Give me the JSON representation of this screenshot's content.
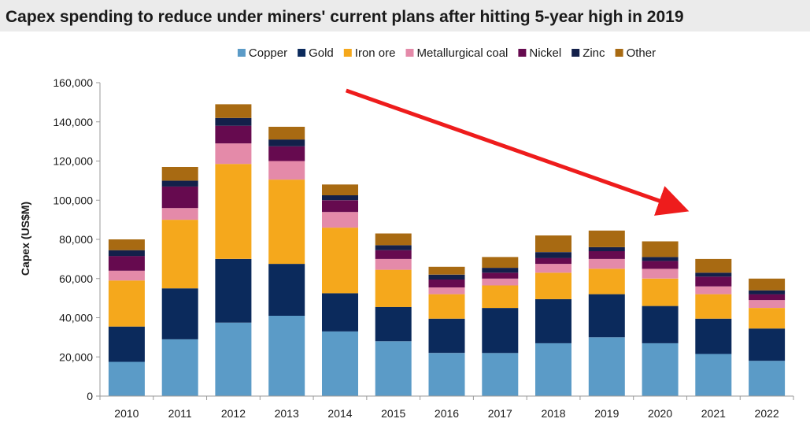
{
  "chart_data": {
    "type": "bar",
    "stacked": true,
    "title": "Capex spending to reduce under miners' current plans after hitting 5-year high in 2019",
    "xlabel": "",
    "ylabel": "Capex (US$M)",
    "ylim": [
      0,
      160000
    ],
    "yticks": [
      0,
      20000,
      40000,
      60000,
      80000,
      100000,
      120000,
      140000,
      160000
    ],
    "ytick_labels": [
      "0",
      "20,000",
      "40,000",
      "60,000",
      "80,000",
      "100,000",
      "120,000",
      "140,000",
      "160,000"
    ],
    "grid": false,
    "legend_position": "top",
    "categories": [
      "2010",
      "2011",
      "2012",
      "2013",
      "2014",
      "2015",
      "2016",
      "2017",
      "2018",
      "2019",
      "2020",
      "2021",
      "2022"
    ],
    "series": [
      {
        "name": "Copper",
        "color": "#5b9bc7",
        "values": [
          17500,
          29000,
          37500,
          41000,
          33000,
          28000,
          22000,
          22000,
          27000,
          30000,
          27000,
          21500,
          18000
        ]
      },
      {
        "name": "Gold",
        "color": "#0b2a5c",
        "values": [
          18000,
          26000,
          32500,
          26500,
          19500,
          17500,
          17500,
          23000,
          22500,
          22000,
          19000,
          18000,
          16500
        ]
      },
      {
        "name": "Iron ore",
        "color": "#f5a81c",
        "values": [
          23500,
          35000,
          48500,
          43000,
          33500,
          19000,
          12500,
          11500,
          13500,
          13000,
          14000,
          12500,
          10500
        ]
      },
      {
        "name": "Metallurgical coal",
        "color": "#e48aa9",
        "values": [
          5000,
          6000,
          10500,
          9500,
          8000,
          5500,
          3500,
          3500,
          4500,
          5000,
          5000,
          4000,
          4000
        ]
      },
      {
        "name": "Nickel",
        "color": "#660a4f",
        "values": [
          7500,
          11000,
          9000,
          7500,
          6000,
          4500,
          4000,
          3000,
          3000,
          4000,
          4000,
          5000,
          3000
        ]
      },
      {
        "name": "Zinc",
        "color": "#13204a",
        "values": [
          3000,
          3000,
          4000,
          3500,
          2500,
          2500,
          2500,
          2500,
          3000,
          2000,
          2000,
          2000,
          2000
        ]
      },
      {
        "name": "Other",
        "color": "#a86a12",
        "values": [
          5500,
          7000,
          7000,
          6500,
          5500,
          6000,
          4000,
          5500,
          8500,
          8500,
          8000,
          7000,
          6000
        ]
      }
    ],
    "annotations": [
      {
        "type": "arrow",
        "color": "#ee1c1c",
        "from": {
          "x": "2015",
          "y": 156000
        },
        "to": {
          "x": "2020",
          "y": 96000
        }
      }
    ]
  }
}
